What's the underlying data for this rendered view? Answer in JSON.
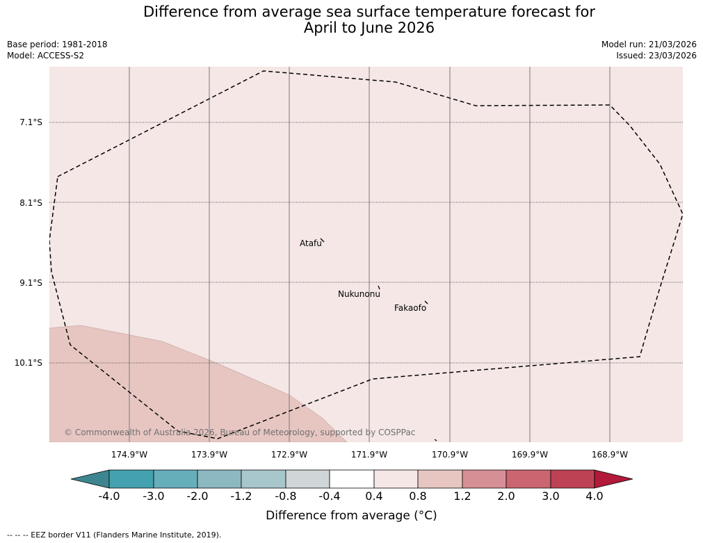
{
  "title_line1": "Difference from average sea surface temperature forecast for",
  "title_line2": "April to June 2026",
  "base_period": "Base period: 1981-2018",
  "model": "Model: ACCESS-S2",
  "model_run": "Model run: 21/03/2026",
  "issued": "Issued: 23/03/2026",
  "lat_labels": [
    "7.1°S",
    "8.1°S",
    "9.1°S",
    "10.1°S"
  ],
  "lon_labels": [
    "174.9°W",
    "173.9°W",
    "172.9°W",
    "171.9°W",
    "170.9°W",
    "169.9°W",
    "168.9°W"
  ],
  "places": {
    "atafu": "Atafu",
    "nukunonu": "Nukunonu",
    "fakaofo": "Fakaofo"
  },
  "copyright": "© Commonwealth of Australia 2026, Bureau of Meteorology, supported by COSPPac",
  "colorbar": {
    "ticks": [
      "-4.0",
      "-3.0",
      "-2.0",
      "-1.2",
      "-0.8",
      "-0.4",
      "0.4",
      "0.8",
      "1.2",
      "2.0",
      "3.0",
      "4.0"
    ],
    "colors": [
      "#3e868f",
      "#44a1b0",
      "#67aebb",
      "#8cb8c2",
      "#a8c7cc",
      "#d0d5d7",
      "#ffffff",
      "#f4e7e6",
      "#e7c6c2",
      "#d78f96",
      "#cb6670",
      "#bd4354",
      "#b2193a"
    ],
    "label": "Difference from average (°C)"
  },
  "legend": "--  --  -- EEZ border V11 (Flanders Marine Institute, 2019).",
  "colors": {
    "background_anomaly": "#f4e7e6",
    "warm_anomaly": "#e7c6c2"
  }
}
